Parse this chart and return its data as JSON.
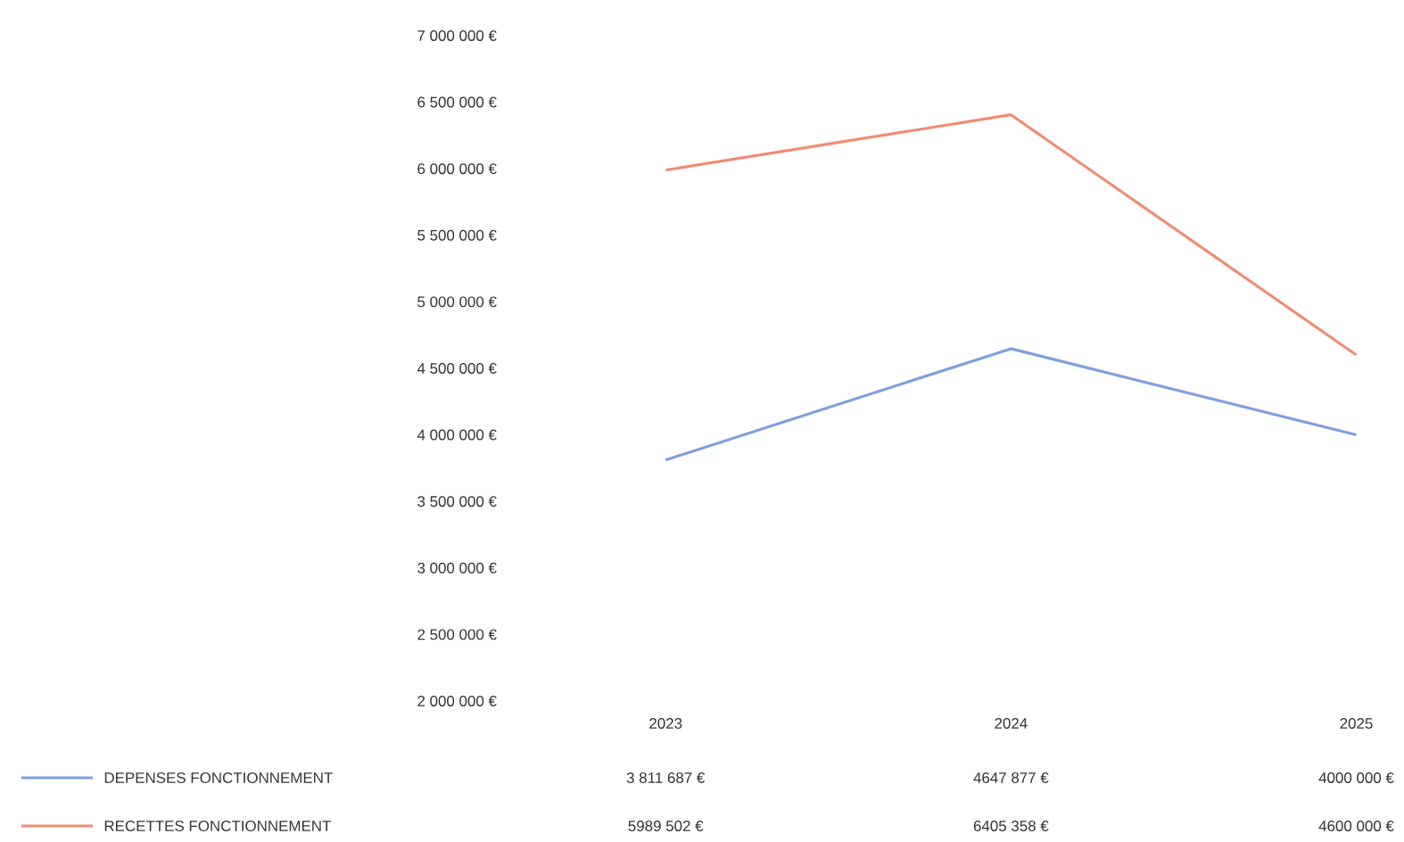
{
  "chart_data": {
    "type": "line",
    "categories": [
      "2023",
      "2024",
      "2025"
    ],
    "series": [
      {
        "name": "DEPENSES FONCTIONNEMENT",
        "color": "#7f9fe0",
        "values": [
          3811687,
          4647877,
          4000000
        ],
        "value_labels": [
          "3 811 687 €",
          "4647 877 €",
          "4000 000 €"
        ]
      },
      {
        "name": "RECETTES FONCTIONNEMENT",
        "color": "#f08c72",
        "values": [
          5989502,
          6405358,
          4600000
        ],
        "value_labels": [
          "5989 502 €",
          "6405 358 €",
          "4600 000 €"
        ]
      }
    ],
    "ylim": [
      2000000,
      7000000
    ],
    "yticks": [
      {
        "value": 2000000,
        "label": "2 000 000 €"
      },
      {
        "value": 2500000,
        "label": "2 500 000 €"
      },
      {
        "value": 3000000,
        "label": "3 000 000 €"
      },
      {
        "value": 3500000,
        "label": "3 500 000 €"
      },
      {
        "value": 4000000,
        "label": "4 000 000 €"
      },
      {
        "value": 4500000,
        "label": "4 500 000 €"
      },
      {
        "value": 5000000,
        "label": "5 000 000 €"
      },
      {
        "value": 5500000,
        "label": "5 500 000 €"
      },
      {
        "value": 6000000,
        "label": "6 000 000 €"
      },
      {
        "value": 6500000,
        "label": "6 500 000 €"
      },
      {
        "value": 7000000,
        "label": "7 000 000 €"
      }
    ],
    "grid": false,
    "legend": "bottom",
    "marker": "none",
    "line_style": "solid"
  }
}
